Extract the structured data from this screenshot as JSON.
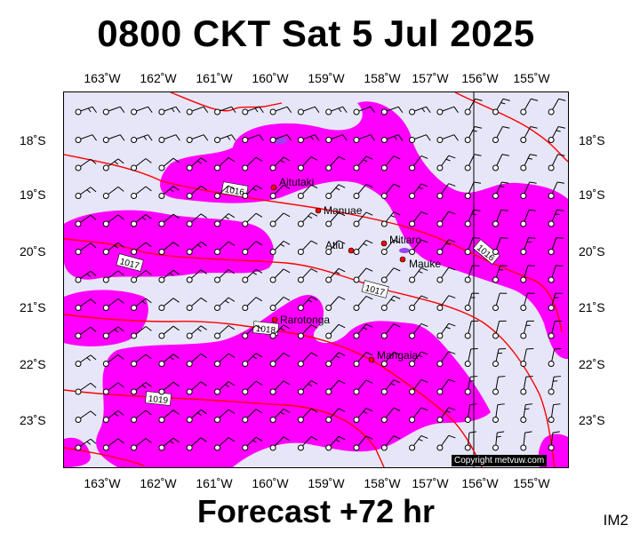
{
  "header": {
    "title": "0800 CKT Sat 5 Jul 2025"
  },
  "footer": {
    "subtitle": "Forecast +72 hr",
    "code": "IM2",
    "copyright": "Copyright metvuw.com"
  },
  "axes": {
    "longitude_labels": [
      "163˚W",
      "162˚W",
      "161˚W",
      "160˚W",
      "159˚W",
      "158˚W",
      "157˚W",
      "156˚W",
      "155˚W"
    ],
    "latitude_labels": [
      "18˚S",
      "19˚S",
      "20˚S",
      "21˚S",
      "22˚S",
      "23˚S"
    ]
  },
  "places": [
    {
      "name": "Aitutaki"
    },
    {
      "name": "Manuae"
    },
    {
      "name": "Atiu"
    },
    {
      "name": "Mitiaro"
    },
    {
      "name": "Mauke"
    },
    {
      "name": "Rarotonga"
    },
    {
      "name": "Mangaia"
    }
  ],
  "isobars": [
    {
      "label": "1016"
    },
    {
      "label": "1016"
    },
    {
      "label": "1017"
    },
    {
      "label": "1017"
    },
    {
      "label": "1018"
    },
    {
      "label": "1019"
    }
  ],
  "colors": {
    "background": "#e6e6f8",
    "rain": "#ff00ff",
    "heavy_rain": "#a040f0",
    "isobar": "#ff0000",
    "place_dot": "#ff0000"
  },
  "map_legend": {
    "wind_symbol": "wind barb",
    "rain_shading": "precipitation"
  }
}
